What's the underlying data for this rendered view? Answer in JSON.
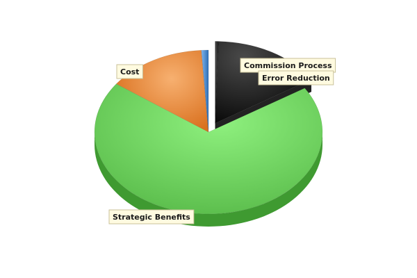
{
  "chart_data": {
    "type": "pie",
    "style": "3d",
    "title": "",
    "legend": "none",
    "slices": [
      {
        "label": "Commission Process",
        "value": 0.5,
        "color": "#111111",
        "exploded": true
      },
      {
        "label": "Error Reduction",
        "value": 15.5,
        "color": "#111111",
        "exploded": true
      },
      {
        "label": "Strategic Benefits",
        "value": 69.0,
        "color": "#6fd45f"
      },
      {
        "label": "Cost",
        "value": 14.0,
        "color": "#ee8a3a"
      },
      {
        "label": "",
        "value": 1.0,
        "color": "#4a90d9"
      }
    ]
  }
}
